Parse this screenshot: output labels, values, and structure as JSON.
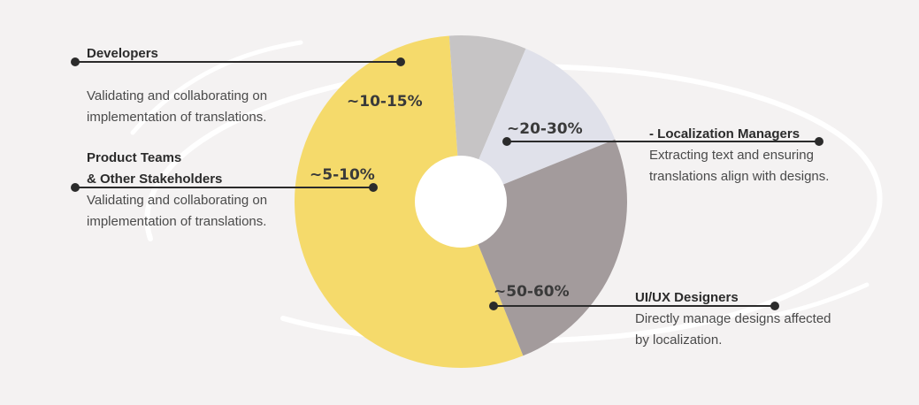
{
  "colors": {
    "background": "#f4f2f2",
    "leader_line": "#2b2b2b"
  },
  "chart_data": {
    "type": "pie",
    "donut": true,
    "slices": [
      {
        "label": "UI/UX Designers",
        "value_label": "~50-60%",
        "value": 55,
        "color": "#f5da6b",
        "description_lines": [
          "Directly manage designs affected",
          "by localization."
        ]
      },
      {
        "label": "Product Teams & Other Stakeholders",
        "label_lines": [
          "Product Teams",
          "& Other Stakeholders"
        ],
        "value_label": "~5-10%",
        "value": 7.5,
        "color": "#c6c4c5",
        "description_lines": [
          "Validating and collaborating on",
          "implementation of translations."
        ]
      },
      {
        "label": "Developers",
        "value_label": "~10-15%",
        "value": 12.5,
        "color": "#e0e1ea",
        "description_lines": [
          "Validating and collaborating on",
          "implementation of translations."
        ]
      },
      {
        "label": "- Localization Managers",
        "value_label": "~20-30%",
        "value": 25,
        "color": "#a39b9c",
        "description_lines": [
          "Extracting text and ensuring",
          "translations align with designs."
        ]
      }
    ]
  }
}
